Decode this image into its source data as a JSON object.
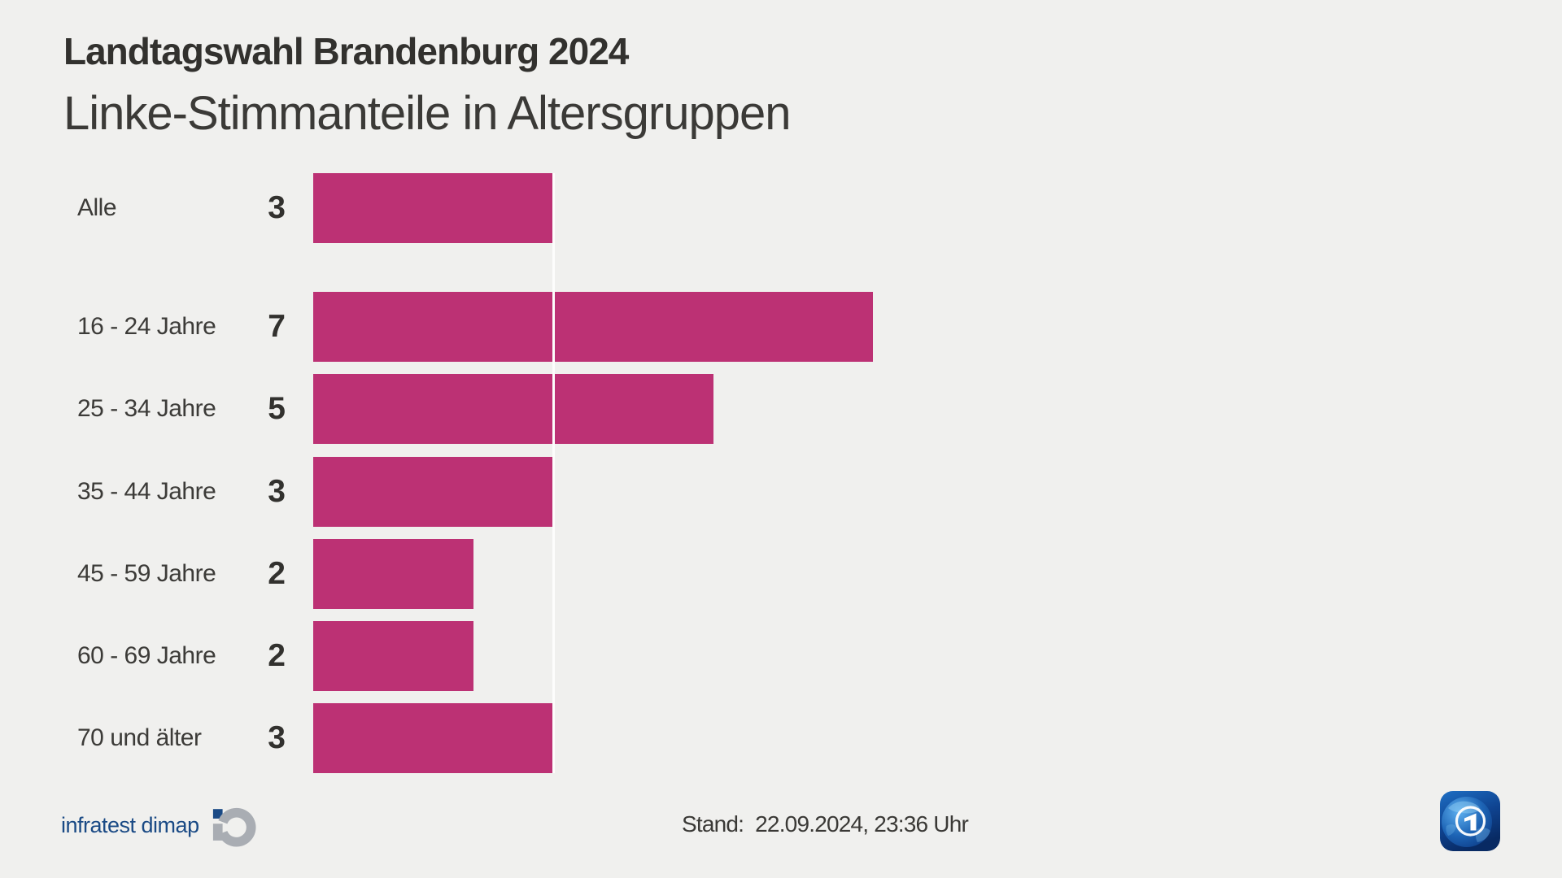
{
  "meta": {
    "colors": {
      "background": "#f0f0ee",
      "bar": "#bc3174",
      "reference_line": "#fdfdfc",
      "heading": "#32312e",
      "text": "#3b3a37",
      "brand_blue": "#1a4a85",
      "brand_gray": "#a9adb3"
    }
  },
  "header": {
    "kicker": "Landtagswahl Brandenburg 2024",
    "title": "Linke-Stimmanteile in Altersgruppen"
  },
  "chart_data": {
    "type": "bar",
    "orientation": "horizontal",
    "title": "Linke-Stimmanteile in Altersgruppen",
    "categories": [
      "Alle",
      "16 - 24 Jahre",
      "25 - 34 Jahre",
      "35 - 44 Jahre",
      "45 - 59 Jahre",
      "60 - 69 Jahre",
      "70 und älter"
    ],
    "values": [
      3,
      7,
      5,
      3,
      2,
      2,
      3
    ],
    "value_labels": [
      "3",
      "7",
      "5",
      "3",
      "2",
      "2",
      "3"
    ],
    "reference_value": 3,
    "reference_category": "Alle",
    "xlim": [
      0,
      7.8
    ],
    "grid": false,
    "legend": false,
    "bar_color": "#bc3174"
  },
  "footer": {
    "source": "infratest dimap",
    "source_icon": "infratest-dimap-id-icon",
    "stand_label": "Stand:",
    "stand_value": "22.09.2024, 23:36 Uhr",
    "broadcaster_icon": "ard-tagesschau-globe-icon"
  }
}
